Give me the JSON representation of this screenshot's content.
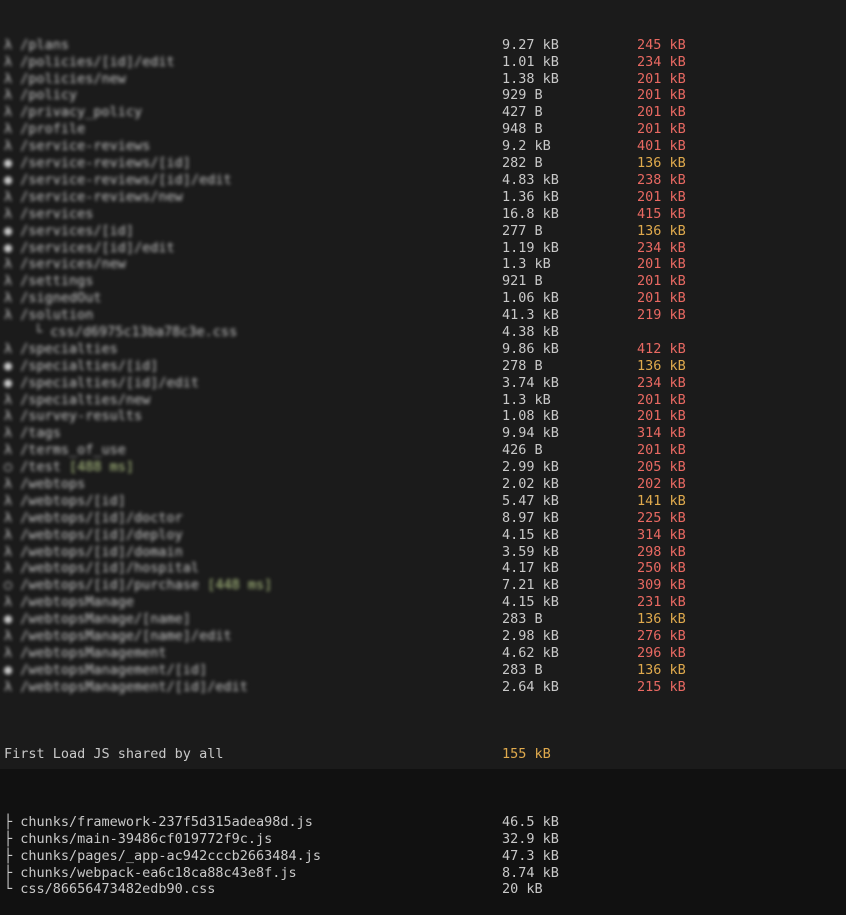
{
  "colors": {
    "background": "#1b1b1b",
    "text": "#c9c9c9",
    "red": "#e96962",
    "yellow": "#e0aa4d",
    "green": "#b8cc8a"
  },
  "build_output": {
    "note": "route names are pixelated/redacted in the source screenshot",
    "rows": [
      {
        "symbol": "λ",
        "path": "/plans",
        "size": "9.27 kB",
        "first_load": "245 kB",
        "first_load_color": "red",
        "blurred": true
      },
      {
        "symbol": "λ",
        "path": "/policies/[id]/edit",
        "size": "1.01 kB",
        "first_load": "234 kB",
        "first_load_color": "red",
        "blurred": true
      },
      {
        "symbol": "λ",
        "path": "/policies/new",
        "size": "1.38 kB",
        "first_load": "201 kB",
        "first_load_color": "red",
        "blurred": true
      },
      {
        "symbol": "λ",
        "path": "/policy",
        "size": "929 B",
        "first_load": "201 kB",
        "first_load_color": "red",
        "blurred": true
      },
      {
        "symbol": "λ",
        "path": "/privacy_policy",
        "size": "427 B",
        "first_load": "201 kB",
        "first_load_color": "red",
        "blurred": true
      },
      {
        "symbol": "λ",
        "path": "/profile",
        "size": "948 B",
        "first_load": "201 kB",
        "first_load_color": "red",
        "blurred": true
      },
      {
        "symbol": "λ",
        "path": "/service-reviews",
        "size": "9.2 kB",
        "first_load": "401 kB",
        "first_load_color": "red",
        "blurred": true
      },
      {
        "symbol": "●",
        "path": "/service-reviews/[id]",
        "size": "282 B",
        "first_load": "136 kB",
        "first_load_color": "yellow",
        "blurred": true
      },
      {
        "symbol": "●",
        "path": "/service-reviews/[id]/edit",
        "size": "4.83 kB",
        "first_load": "238 kB",
        "first_load_color": "red",
        "blurred": true
      },
      {
        "symbol": "λ",
        "path": "/service-reviews/new",
        "size": "1.36 kB",
        "first_load": "201 kB",
        "first_load_color": "red",
        "blurred": true
      },
      {
        "symbol": "λ",
        "path": "/services",
        "size": "16.8 kB",
        "first_load": "415 kB",
        "first_load_color": "red",
        "blurred": true
      },
      {
        "symbol": "●",
        "path": "/services/[id]",
        "size": "277 B",
        "first_load": "136 kB",
        "first_load_color": "yellow",
        "blurred": true
      },
      {
        "symbol": "●",
        "path": "/services/[id]/edit",
        "size": "1.19 kB",
        "first_load": "234 kB",
        "first_load_color": "red",
        "blurred": true
      },
      {
        "symbol": "λ",
        "path": "/services/new",
        "size": "1.3 kB",
        "first_load": "201 kB",
        "first_load_color": "red",
        "blurred": true
      },
      {
        "symbol": "λ",
        "path": "/settings",
        "size": "921 B",
        "first_load": "201 kB",
        "first_load_color": "red",
        "blurred": true
      },
      {
        "symbol": "λ",
        "path": "/signedOut",
        "size": "1.06 kB",
        "first_load": "201 kB",
        "first_load_color": "red",
        "blurred": true
      },
      {
        "symbol": "λ",
        "path": "/solution",
        "size": "41.3 kB",
        "first_load": "219 kB",
        "first_load_color": "red",
        "blurred": true
      },
      {
        "symbol": "└",
        "path": "css/d6975c13ba78c3e.css",
        "size": "4.38 kB",
        "first_load": "",
        "indent": true,
        "blurred": true
      },
      {
        "symbol": "λ",
        "path": "/specialties",
        "size": "9.86 kB",
        "first_load": "412 kB",
        "first_load_color": "red",
        "blurred": true
      },
      {
        "symbol": "●",
        "path": "/specialties/[id]",
        "size": "278 B",
        "first_load": "136 kB",
        "first_load_color": "yellow",
        "blurred": true
      },
      {
        "symbol": "●",
        "path": "/specialties/[id]/edit",
        "size": "3.74 kB",
        "first_load": "234 kB",
        "first_load_color": "red",
        "blurred": true
      },
      {
        "symbol": "λ",
        "path": "/specialties/new",
        "size": "1.3 kB",
        "first_load": "201 kB",
        "first_load_color": "red",
        "blurred": true
      },
      {
        "symbol": "λ",
        "path": "/survey-results",
        "size": "1.08 kB",
        "first_load": "201 kB",
        "first_load_color": "red",
        "blurred": true
      },
      {
        "symbol": "λ",
        "path": "/tags",
        "size": "9.94 kB",
        "first_load": "314 kB",
        "first_load_color": "red",
        "blurred": true
      },
      {
        "symbol": "λ",
        "path": "/terms_of_use",
        "size": "426 B",
        "first_load": "201 kB",
        "first_load_color": "red",
        "blurred": true
      },
      {
        "symbol": "○",
        "path": "/test",
        "annotation": "[488 ms]",
        "annotation_color": "green",
        "size": "2.99 kB",
        "first_load": "205 kB",
        "first_load_color": "red",
        "blurred": true
      },
      {
        "symbol": "λ",
        "path": "/webtops",
        "size": "2.02 kB",
        "first_load": "202 kB",
        "first_load_color": "red",
        "blurred": true
      },
      {
        "symbol": "λ",
        "path": "/webtops/[id]",
        "size": "5.47 kB",
        "first_load": "141 kB",
        "first_load_color": "yellow",
        "blurred": true
      },
      {
        "symbol": "λ",
        "path": "/webtops/[id]/doctor",
        "size": "8.97 kB",
        "first_load": "225 kB",
        "first_load_color": "red",
        "blurred": true
      },
      {
        "symbol": "λ",
        "path": "/webtops/[id]/deploy",
        "size": "4.15 kB",
        "first_load": "314 kB",
        "first_load_color": "red",
        "blurred": true
      },
      {
        "symbol": "λ",
        "path": "/webtops/[id]/domain",
        "size": "3.59 kB",
        "first_load": "298 kB",
        "first_load_color": "red",
        "blurred": true
      },
      {
        "symbol": "λ",
        "path": "/webtops/[id]/hospital",
        "size": "4.17 kB",
        "first_load": "250 kB",
        "first_load_color": "red",
        "blurred": true
      },
      {
        "symbol": "○",
        "path": "/webtops/[id]/purchase",
        "annotation": "[448 ms]",
        "annotation_color": "green",
        "size": "7.21 kB",
        "first_load": "309 kB",
        "first_load_color": "red",
        "blurred": true
      },
      {
        "symbol": "λ",
        "path": "/webtopsManage",
        "size": "4.15 kB",
        "first_load": "231 kB",
        "first_load_color": "red",
        "blurred": true
      },
      {
        "symbol": "●",
        "path": "/webtopsManage/[name]",
        "size": "283 B",
        "first_load": "136 kB",
        "first_load_color": "yellow",
        "blurred": true
      },
      {
        "symbol": "λ",
        "path": "/webtopsManage/[name]/edit",
        "size": "2.98 kB",
        "first_load": "276 kB",
        "first_load_color": "red",
        "blurred": true
      },
      {
        "symbol": "λ",
        "path": "/webtopsManagement",
        "size": "4.62 kB",
        "first_load": "296 kB",
        "first_load_color": "red",
        "blurred": true
      },
      {
        "symbol": "●",
        "path": "/webtopsManagement/[id]",
        "size": "283 B",
        "first_load": "136 kB",
        "first_load_color": "yellow",
        "blurred": true
      },
      {
        "symbol": "λ",
        "path": "/webtopsManagement/[id]/edit",
        "size": "2.64 kB",
        "first_load": "215 kB",
        "first_load_color": "red",
        "blurred": true
      }
    ],
    "shared": {
      "label": "First Load JS shared by all",
      "total": "155 kB",
      "total_color": "yellow",
      "files": [
        {
          "prefix": "├",
          "name": "chunks/framework-237f5d315adea98d.js",
          "size": "46.5 kB"
        },
        {
          "prefix": "├",
          "name": "chunks/main-39486cf019772f9c.js",
          "size": "32.9 kB"
        },
        {
          "prefix": "├",
          "name": "chunks/pages/_app-ac942cccb2663484.js",
          "size": "47.3 kB"
        },
        {
          "prefix": "├",
          "name": "chunks/webpack-ea6c18ca88c43e8f.js",
          "size": "8.74 kB"
        },
        {
          "prefix": "└",
          "name": "css/86656473482edb90.css",
          "size": "20 kB"
        }
      ]
    }
  }
}
